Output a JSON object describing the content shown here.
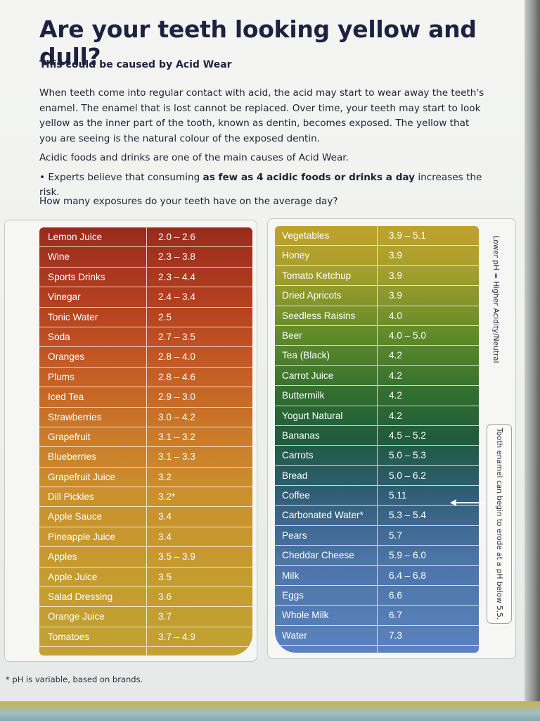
{
  "header": {
    "title": "Are your teeth looking yellow and dull?",
    "subtitle": "This could be caused by Acid Wear"
  },
  "body": {
    "paragraph1": "When teeth come into regular contact with acid, the acid may start to wear away the teeth's enamel. The enamel that is lost cannot be replaced. Over time, your teeth may start to look yellow as the inner part of the tooth, known as dentin, becomes exposed. The yellow that you are seeing is the natural colour of the exposed dentin.",
    "paragraph2": "Acidic foods and drinks are one of the main causes of Acid Wear.",
    "bullet_prefix": "• Experts believe that consuming ",
    "bullet_bold": "as few as 4 acidic foods or drinks a day",
    "bullet_suffix": " increases the risk.",
    "question": "How many exposures do your teeth have on the average day?"
  },
  "axis_label": "Lower pH = Higher Acidity/Neutral",
  "callout": "Tooth enamel can begin to erode at a pH below 5.5.",
  "footnote": "* pH is variable, based on brands.",
  "left_table": [
    {
      "name": "Lemon Juice",
      "ph": "2.0 – 2.6"
    },
    {
      "name": "Wine",
      "ph": "2.3 – 3.8"
    },
    {
      "name": "Sports Drinks",
      "ph": "2.3 – 4.4"
    },
    {
      "name": "Vinegar",
      "ph": "2.4 – 3.4"
    },
    {
      "name": "Tonic Water",
      "ph": "2.5"
    },
    {
      "name": "Soda",
      "ph": "2.7 – 3.5"
    },
    {
      "name": "Oranges",
      "ph": "2.8 – 4.0"
    },
    {
      "name": "Plums",
      "ph": "2.8 – 4.6"
    },
    {
      "name": "Iced Tea",
      "ph": "2.9 – 3.0"
    },
    {
      "name": "Strawberries",
      "ph": "3.0 – 4.2"
    },
    {
      "name": "Grapefruit",
      "ph": "3.1 – 3.2"
    },
    {
      "name": "Blueberries",
      "ph": "3.1 – 3.3"
    },
    {
      "name": "Grapefruit Juice",
      "ph": "3.2"
    },
    {
      "name": "Dill Pickles",
      "ph": "3.2*"
    },
    {
      "name": "Apple Sauce",
      "ph": "3.4"
    },
    {
      "name": "Pineapple Juice",
      "ph": "3.4"
    },
    {
      "name": "Apples",
      "ph": "3.5 – 3.9"
    },
    {
      "name": "Apple Juice",
      "ph": "3.5"
    },
    {
      "name": "Salad Dressing",
      "ph": "3.6"
    },
    {
      "name": "Orange Juice",
      "ph": "3.7"
    },
    {
      "name": "Tomatoes",
      "ph": "3.7 – 4.9"
    },
    {
      "name": "",
      "ph": ""
    }
  ],
  "right_table": [
    {
      "name": "Vegetables",
      "ph": "3.9 – 5.1"
    },
    {
      "name": "Honey",
      "ph": "3.9"
    },
    {
      "name": "Tomato Ketchup",
      "ph": "3.9"
    },
    {
      "name": "Dried Apricots",
      "ph": "3.9"
    },
    {
      "name": "Seedless Raisins",
      "ph": "4.0"
    },
    {
      "name": "Beer",
      "ph": "4.0 – 5.0"
    },
    {
      "name": "Tea (Black)",
      "ph": "4.2"
    },
    {
      "name": "Carrot Juice",
      "ph": "4.2"
    },
    {
      "name": "Buttermilk",
      "ph": "4.2"
    },
    {
      "name": "Yogurt Natural",
      "ph": "4.2"
    },
    {
      "name": "Bananas",
      "ph": "4.5 – 5.2"
    },
    {
      "name": "Carrots",
      "ph": "5.0 – 5.3"
    },
    {
      "name": "Bread",
      "ph": "5.0 – 6.2"
    },
    {
      "name": "Coffee",
      "ph": "5.11"
    },
    {
      "name": "Carbonated Water*",
      "ph": "5.3 – 5.4"
    },
    {
      "name": "Pears",
      "ph": "5.7"
    },
    {
      "name": "Cheddar Cheese",
      "ph": "5.9 – 6.0"
    },
    {
      "name": "Milk",
      "ph": "6.4 – 6.8"
    },
    {
      "name": "Eggs",
      "ph": "6.6"
    },
    {
      "name": "Whole Milk",
      "ph": "6.7"
    },
    {
      "name": "Water",
      "ph": "7.3"
    },
    {
      "name": "",
      "ph": ""
    }
  ],
  "colors": {
    "title": "#1d2240",
    "acid_top": "#9a2b1d",
    "acid_bottom": "#c1a233",
    "neutral_top": "#c3a02e",
    "neutral_mid": "#1f5b3d",
    "neutral_bottom": "#5a83bf"
  }
}
